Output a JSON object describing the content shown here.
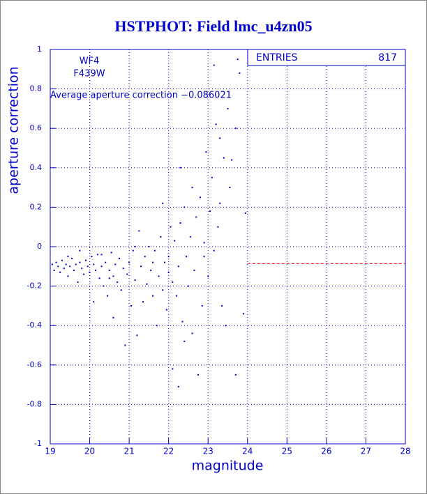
{
  "chart_data": {
    "type": "scatter",
    "title": "HSTPHOT: Field lmc_u4zn05",
    "x_label": "magnitude",
    "y_label": "aperture correction",
    "annotations": [
      "WF4",
      "F439W"
    ],
    "average": {
      "value": -0.086021,
      "label": "Average aperture correction −0.086021",
      "from": 24,
      "color": "#ff0000"
    },
    "stats": {
      "label": "ENTRIES",
      "value": 817
    },
    "color": "#0000cc",
    "grid": true,
    "xlim": [
      19,
      28
    ],
    "xticks": [
      19,
      20,
      21,
      22,
      23,
      24,
      25,
      26,
      27,
      28
    ],
    "ylim": [
      -1,
      1
    ],
    "yticks": [
      -1,
      -0.8,
      -0.6,
      -0.4,
      -0.2,
      0,
      0.2,
      0.4,
      0.6,
      0.8,
      1
    ],
    "x": [
      19.05,
      19.1,
      19.15,
      19.2,
      19.25,
      19.3,
      19.35,
      19.4,
      19.45,
      19.5,
      19.55,
      19.6,
      19.65,
      19.7,
      19.75,
      19.8,
      19.85,
      19.9,
      19.95,
      20.0,
      20.05,
      20.1,
      20.1,
      20.15,
      20.2,
      20.25,
      20.3,
      20.35,
      20.4,
      20.45,
      20.5,
      20.55,
      20.6,
      20.6,
      20.65,
      20.7,
      20.75,
      20.8,
      20.85,
      20.9,
      20.95,
      21.0,
      21.05,
      21.1,
      21.15,
      21.2,
      21.25,
      21.3,
      21.35,
      21.4,
      21.45,
      21.5,
      21.55,
      21.6,
      21.65,
      21.7,
      21.75,
      21.8,
      21.85,
      21.9,
      21.95,
      22.0,
      22.05,
      22.1,
      22.1,
      22.15,
      22.2,
      22.25,
      22.3,
      22.35,
      22.4,
      22.45,
      22.5,
      22.55,
      22.6,
      22.6,
      22.65,
      22.7,
      22.75,
      22.8,
      22.85,
      22.9,
      22.95,
      23.0,
      23.05,
      23.1,
      23.15,
      23.2,
      23.25,
      23.3,
      23.35,
      23.4,
      23.45,
      23.5,
      23.55,
      23.6,
      23.7,
      23.75,
      23.8,
      23.9,
      23.95,
      23.15,
      23.7,
      22.25,
      22.3,
      21.85,
      19.45,
      19.75,
      20.3,
      20.5,
      21.6,
      22.0,
      22.9,
      23.3,
      22.4,
      21.15
    ],
    "y": [
      -0.09,
      -0.12,
      -0.08,
      -0.1,
      -0.13,
      -0.07,
      -0.11,
      -0.09,
      -0.15,
      -0.1,
      -0.06,
      -0.12,
      -0.09,
      -0.18,
      -0.08,
      -0.11,
      -0.14,
      -0.07,
      -0.1,
      -0.13,
      -0.05,
      -0.09,
      -0.28,
      -0.12,
      -0.04,
      -0.16,
      -0.1,
      -0.2,
      -0.08,
      -0.25,
      -0.12,
      -0.03,
      -0.15,
      -0.36,
      -0.09,
      -0.18,
      -0.06,
      -0.22,
      -0.11,
      -0.5,
      -0.14,
      -0.08,
      -0.3,
      -0.02,
      -0.17,
      -0.45,
      0.08,
      -0.1,
      -0.28,
      -0.05,
      -0.19,
      0.0,
      -0.12,
      -0.25,
      -0.02,
      -0.4,
      -0.15,
      0.05,
      -0.22,
      -0.08,
      -0.32,
      -0.05,
      0.1,
      -0.62,
      -0.18,
      0.03,
      -0.25,
      -0.1,
      0.12,
      -0.38,
      0.2,
      -0.05,
      -0.2,
      0.05,
      0.3,
      -0.44,
      -0.12,
      0.15,
      -0.65,
      0.25,
      -0.3,
      0.02,
      0.48,
      -0.15,
      0.18,
      0.35,
      -0.02,
      0.62,
      0.1,
      0.55,
      -0.3,
      0.45,
      -0.4,
      0.7,
      0.3,
      0.44,
      0.6,
      0.95,
      0.88,
      -0.34,
      0.17,
      0.92,
      -0.65,
      -0.71,
      0.4,
      0.22,
      -0.05,
      -0.02,
      -0.04,
      -0.16,
      -0.08,
      -0.13,
      -0.05,
      0.22,
      -0.48,
      0.0
    ]
  }
}
